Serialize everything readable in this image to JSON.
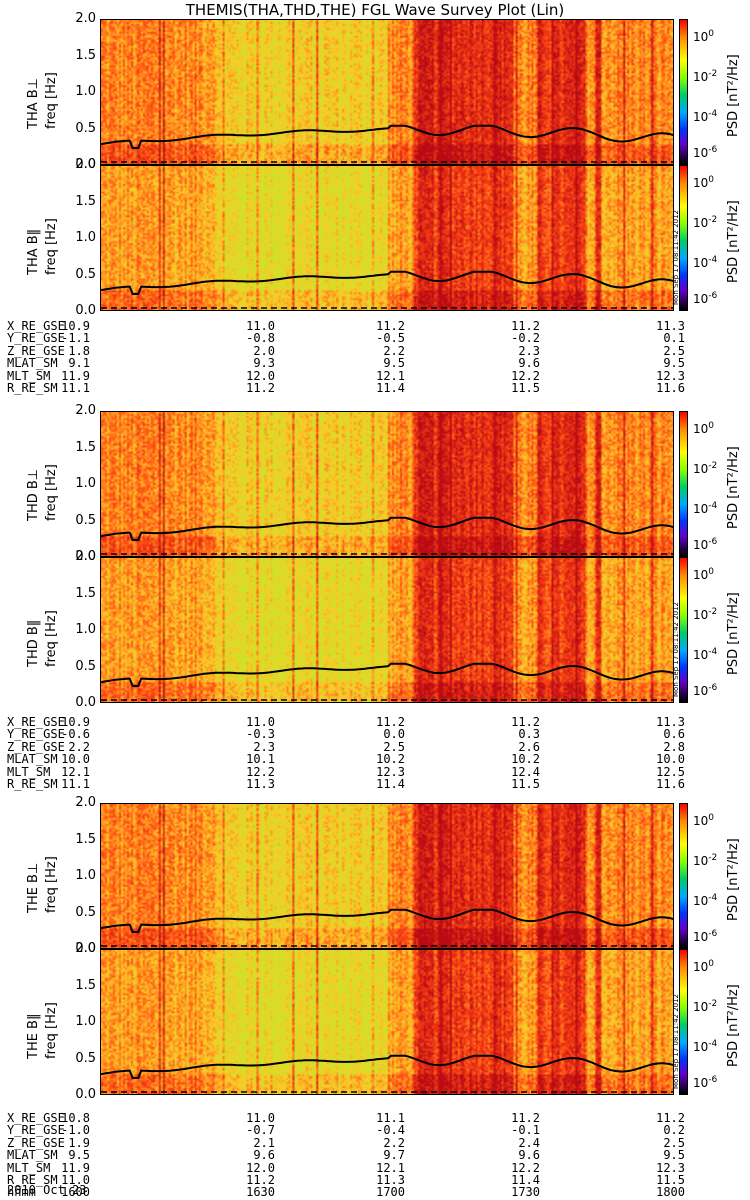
{
  "title": "THEMIS(THA,THD,THE) FGL Wave Survey Plot (Lin)",
  "colorbar": {
    "label": "PSD [nT²/Hz]",
    "ticks": [
      {
        "base": "10",
        "exp": "0"
      },
      {
        "base": "10",
        "exp": "-2"
      },
      {
        "base": "10",
        "exp": "-4"
      },
      {
        "base": "10",
        "exp": "-6"
      }
    ],
    "stamp": "Mon Sep 17 08:11:42 2012"
  },
  "chart_data": {
    "type": "heatmap",
    "x_time_range": [
      "1600",
      "1800"
    ],
    "ylim": [
      0.0,
      2.0
    ],
    "yticks": [
      "2.0",
      "1.5",
      "1.0",
      "0.5",
      "0.0"
    ],
    "ylabel_units": "freq [Hz]",
    "panels": [
      {
        "name": "THA B⊥",
        "probe": "THA"
      },
      {
        "name": "THA B‖",
        "probe": "THA"
      },
      {
        "name": "THD B⊥",
        "probe": "THD"
      },
      {
        "name": "THD B‖",
        "probe": "THD"
      },
      {
        "name": "THE B⊥",
        "probe": "THE"
      },
      {
        "name": "THE B‖",
        "probe": "THE"
      }
    ],
    "colorbar_range_log10": [
      -6,
      1
    ],
    "line_freq_range_hz": [
      0.2,
      0.55
    ]
  },
  "ephemeris": [
    {
      "probe": "THA",
      "rows": [
        {
          "label": "X_RE_GSE",
          "values": [
            "10.9",
            "11.0",
            "11.2",
            "11.2",
            "11.3"
          ]
        },
        {
          "label": "Y_RE_GSE",
          "values": [
            "-1.1",
            "-0.8",
            "-0.5",
            "-0.2",
            "0.1"
          ]
        },
        {
          "label": "Z_RE_GSE",
          "values": [
            "1.8",
            "2.0",
            "2.2",
            "2.3",
            "2.5"
          ]
        },
        {
          "label": "MLAT_SM",
          "values": [
            "9.1",
            "9.3",
            "9.5",
            "9.6",
            "9.5"
          ]
        },
        {
          "label": "MLT_SM",
          "values": [
            "11.9",
            "12.0",
            "12.1",
            "12.2",
            "12.3"
          ]
        },
        {
          "label": "R_RE_SM",
          "values": [
            "11.1",
            "11.2",
            "11.4",
            "11.5",
            "11.6"
          ]
        }
      ]
    },
    {
      "probe": "THD",
      "rows": [
        {
          "label": "X_RE_GSE",
          "values": [
            "10.9",
            "11.0",
            "11.2",
            "11.2",
            "11.3"
          ]
        },
        {
          "label": "Y_RE_GSE",
          "values": [
            "-0.6",
            "-0.3",
            "0.0",
            "0.3",
            "0.6"
          ]
        },
        {
          "label": "Z_RE_GSE",
          "values": [
            "2.2",
            "2.3",
            "2.5",
            "2.6",
            "2.8"
          ]
        },
        {
          "label": "MLAT_SM",
          "values": [
            "10.0",
            "10.1",
            "10.2",
            "10.2",
            "10.0"
          ]
        },
        {
          "label": "MLT_SM",
          "values": [
            "12.1",
            "12.2",
            "12.3",
            "12.4",
            "12.5"
          ]
        },
        {
          "label": "R_RE_SM",
          "values": [
            "11.1",
            "11.3",
            "11.4",
            "11.5",
            "11.6"
          ]
        }
      ]
    },
    {
      "probe": "THE",
      "rows": [
        {
          "label": "X_RE_GSE",
          "values": [
            "10.8",
            "11.0",
            "11.1",
            "11.2",
            "11.2"
          ]
        },
        {
          "label": "Y_RE_GSE",
          "values": [
            "-1.0",
            "-0.7",
            "-0.4",
            "-0.1",
            "0.2"
          ]
        },
        {
          "label": "Z_RE_GSE",
          "values": [
            "1.9",
            "2.1",
            "2.2",
            "2.4",
            "2.5"
          ]
        },
        {
          "label": "MLAT_SM",
          "values": [
            "9.5",
            "9.6",
            "9.7",
            "9.6",
            "9.5"
          ]
        },
        {
          "label": "MLT_SM",
          "values": [
            "11.9",
            "12.0",
            "12.1",
            "12.2",
            "12.3"
          ]
        },
        {
          "label": "R_RE_SM",
          "values": [
            "11.0",
            "11.2",
            "11.3",
            "11.4",
            "11.5"
          ]
        },
        {
          "label": "hhmm",
          "values": [
            "1600",
            "1630",
            "1700",
            "1730",
            "1800"
          ]
        }
      ]
    }
  ],
  "date": "2010 Oct 23",
  "colors": {
    "line": "#000000",
    "background": "#ffffff"
  }
}
